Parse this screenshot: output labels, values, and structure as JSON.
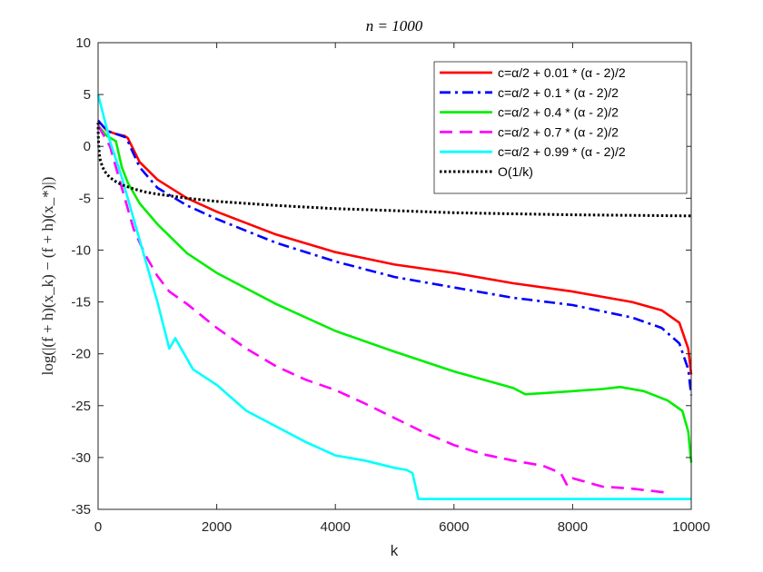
{
  "chart_data": {
    "type": "line",
    "title": "n = 1000",
    "xlabel": "k",
    "ylabel": "log(|(f + h)(x_k) − (f + h)(x_*)|)",
    "xlim": [
      0,
      10000
    ],
    "ylim": [
      -35,
      10
    ],
    "xticks": [
      0,
      2000,
      4000,
      6000,
      8000,
      10000
    ],
    "yticks": [
      10,
      5,
      0,
      -5,
      -10,
      -15,
      -20,
      -25,
      -30,
      -35
    ],
    "xtick_labels": [
      "0",
      "2000",
      "4000",
      "6000",
      "8000",
      "10000"
    ],
    "ytick_labels": [
      "10",
      "5",
      "0",
      "-5",
      "-10",
      "-15",
      "-20",
      "-25",
      "-30",
      "-35"
    ],
    "legend_position": "top-right",
    "series": [
      {
        "name": "c=α/2 + 0.01 * (α - 2)/2",
        "color": "#ff0000",
        "style": "solid",
        "x": [
          0,
          150,
          300,
          450,
          500,
          700,
          1000,
          1500,
          2000,
          3000,
          4000,
          5000,
          6000,
          7000,
          8000,
          9000,
          9500,
          9800,
          9950,
          10000
        ],
        "y": [
          2.5,
          1.5,
          1.2,
          1.0,
          0.8,
          -1.5,
          -3.2,
          -5.0,
          -6.3,
          -8.5,
          -10.2,
          -11.4,
          -12.2,
          -13.2,
          -14.0,
          -15.0,
          -15.8,
          -17.0,
          -19.5,
          -22.0
        ]
      },
      {
        "name": "c=α/2 + 0.1 * (α - 2)/2",
        "color": "#0000ff",
        "style": "dashdot",
        "x": [
          0,
          150,
          300,
          450,
          500,
          700,
          1000,
          1500,
          2000,
          3000,
          4000,
          5000,
          6000,
          7000,
          8000,
          9000,
          9500,
          9800,
          9950,
          10000
        ],
        "y": [
          2.5,
          1.5,
          1.2,
          0.9,
          0.5,
          -2.0,
          -4.0,
          -5.7,
          -7.0,
          -9.3,
          -11.1,
          -12.6,
          -13.6,
          -14.6,
          -15.3,
          -16.5,
          -17.5,
          -19.0,
          -21.5,
          -24.0
        ]
      },
      {
        "name": "c=α/2 + 0.4 * (α - 2)/2",
        "color": "#00ee00",
        "style": "solid",
        "x": [
          0,
          150,
          300,
          400,
          500,
          700,
          1000,
          1500,
          2000,
          3000,
          4000,
          5000,
          6000,
          7000,
          7200,
          7500,
          8000,
          8500,
          8800,
          9200,
          9600,
          9850,
          9950,
          10000
        ],
        "y": [
          2.0,
          1.0,
          0.5,
          -2.0,
          -3.5,
          -5.5,
          -7.5,
          -10.3,
          -12.2,
          -15.2,
          -17.8,
          -19.8,
          -21.7,
          -23.3,
          -23.9,
          -23.8,
          -23.6,
          -23.4,
          -23.2,
          -23.6,
          -24.5,
          -25.5,
          -27.5,
          -30.5
        ]
      },
      {
        "name": "c=α/2 + 0.7 * (α - 2)/2",
        "color": "#ff00ff",
        "style": "dashed",
        "x": [
          0,
          200,
          400,
          600,
          800,
          1000,
          1200,
          1500,
          2000,
          2500,
          3000,
          3500,
          4000,
          4500,
          5000,
          5500,
          6000,
          6500,
          7000,
          7500,
          7800,
          7900,
          8000,
          8500,
          9000,
          9300,
          9600
        ],
        "y": [
          2.0,
          0.0,
          -4.0,
          -8.0,
          -10.5,
          -12.5,
          -14.0,
          -15.2,
          -17.5,
          -19.5,
          -21.2,
          -22.5,
          -23.5,
          -24.8,
          -26.2,
          -27.6,
          -28.8,
          -29.7,
          -30.3,
          -30.8,
          -31.5,
          -32.6,
          -32.0,
          -32.8,
          -33.0,
          -33.2,
          -33.4
        ]
      },
      {
        "name": "c=α/2 + 0.99 * (α - 2)/2",
        "color": "#00ffff",
        "style": "solid",
        "x": [
          0,
          200,
          400,
          600,
          800,
          1000,
          1200,
          1300,
          1600,
          2000,
          2500,
          3000,
          3500,
          4000,
          4500,
          5000,
          5200,
          5300,
          5400,
          6000,
          7000,
          8000,
          9000,
          10000
        ],
        "y": [
          5.0,
          0.5,
          -3.0,
          -7.0,
          -11.0,
          -15.0,
          -19.5,
          -18.5,
          -21.5,
          -23.0,
          -25.5,
          -27.0,
          -28.5,
          -29.8,
          -30.3,
          -31.0,
          -31.2,
          -31.5,
          -34.0,
          -34.0,
          -34.0,
          -34.0,
          -34.0,
          -34.0
        ]
      },
      {
        "name": "O(1/k)",
        "color": "#000000",
        "style": "dotted",
        "x": [
          1,
          2,
          5,
          10,
          20,
          40,
          70,
          100,
          150,
          200,
          300,
          400,
          600,
          800,
          1000,
          1500,
          2000,
          3000,
          4000,
          5000,
          6000,
          7000,
          8000,
          9000,
          10000
        ],
        "y": [
          2.3,
          1.6,
          0.7,
          0.0,
          -0.7,
          -1.4,
          -1.9,
          -2.3,
          -2.7,
          -3.0,
          -3.4,
          -3.7,
          -4.1,
          -4.4,
          -4.6,
          -5.0,
          -5.3,
          -5.7,
          -6.0,
          -6.2,
          -6.4,
          -6.5,
          -6.6,
          -6.65,
          -6.7
        ]
      }
    ]
  }
}
